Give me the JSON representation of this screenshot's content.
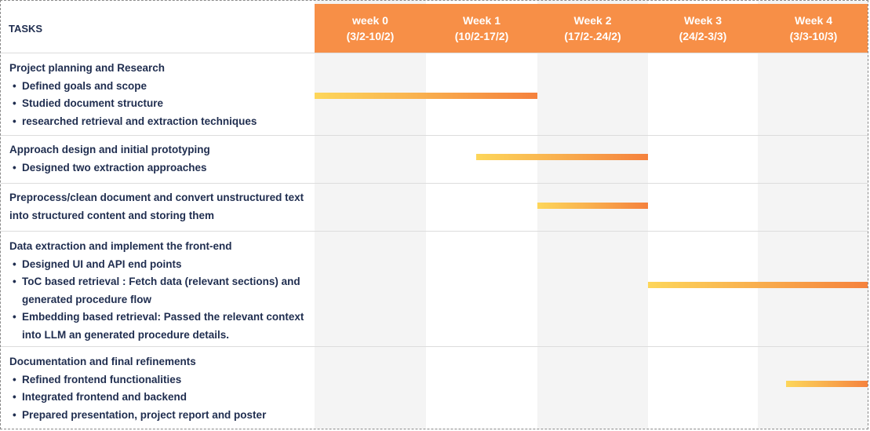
{
  "header": {
    "tasks_label": "TASKS",
    "weeks": [
      {
        "label": "week 0",
        "range": "(3/2-10/2)"
      },
      {
        "label": "Week 1",
        "range": "(10/2-17/2)"
      },
      {
        "label": "Week 2",
        "range": "(17/2-.24/2)"
      },
      {
        "label": "Week 3",
        "range": "(24/2-3/3)"
      },
      {
        "label": "Week 4",
        "range": "(3/3-10/3)"
      }
    ]
  },
  "colors": {
    "header_bg": "#f78f47",
    "header_text": "#ffffff",
    "task_text": "#1f2d4f",
    "bar_start": "#fdd65a",
    "bar_end": "#f5813d",
    "shade": "#f4f4f4"
  },
  "tasks": [
    {
      "title": "Project planning and Research",
      "items": [
        "Defined goals and scope",
        "Studied document structure",
        "researched retrieval and extraction techniques"
      ],
      "span": [
        0,
        2
      ]
    },
    {
      "title": "Approach design and initial prototyping",
      "items": [
        "Designed two extraction approaches"
      ],
      "span": [
        1.45,
        3
      ]
    },
    {
      "title": "Preprocess/clean document and convert unstructured text into structured content and storing them",
      "items": [],
      "span": [
        2,
        3
      ]
    },
    {
      "title": "Data extraction and implement the front-end",
      "items": [
        "Designed UI and API end points",
        "ToC based retrieval : Fetch data (relevant sections) and generated procedure flow",
        "Embedding based retrieval: Passed the relevant context into LLM an generated procedure details."
      ],
      "span": [
        3,
        5
      ]
    },
    {
      "title": "Documentation and final refinements",
      "items": [
        "Refined frontend functionalities",
        "Integrated frontend and backend",
        "Prepared presentation, project report and poster"
      ],
      "span": [
        4.25,
        5
      ]
    }
  ]
}
